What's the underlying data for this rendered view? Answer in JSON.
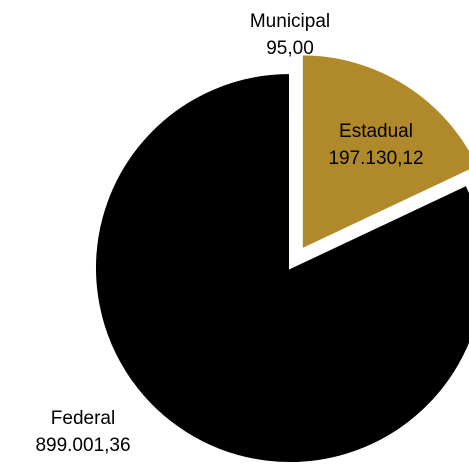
{
  "chart_data": {
    "type": "pie",
    "title": "",
    "slices": [
      {
        "label": "Municipal",
        "value": 95.0,
        "value_label": "95,00",
        "color": "#b08a2a",
        "exploded": true
      },
      {
        "label": "Estadual",
        "value": 197130.12,
        "value_label": "197.130,12",
        "color": "#b08a2a",
        "exploded": true
      },
      {
        "label": "Federal",
        "value": 899001.36,
        "value_label": "899.001,36",
        "color": "#000000",
        "exploded": false
      }
    ],
    "start_angle": "12 o'clock",
    "direction": "clockwise",
    "legend": "none",
    "label_colors": {
      "on_gold": "#000000",
      "outside": "#000000"
    }
  }
}
